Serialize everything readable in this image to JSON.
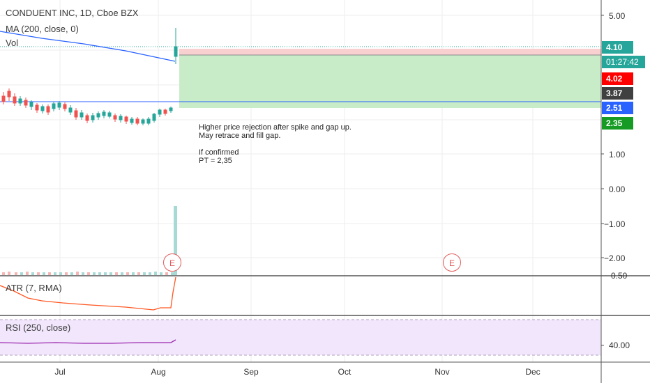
{
  "header": {
    "symbol_title": "CONDUENT INC, 1D, Cboe BZX",
    "ma_label": "MA (200, close, 0)",
    "vol_label": "Vol"
  },
  "price_axis": {
    "ticks": [
      "5.00",
      "1.00",
      "0.00",
      "−1.00",
      "−2.00"
    ],
    "partial_tick": "0.50"
  },
  "price_tags": {
    "current": "4.10",
    "countdown": "01:27:42",
    "stop": "4.02",
    "entry": "3.87",
    "ma": "2.51",
    "target": "2.35"
  },
  "annotation": {
    "lines": [
      "Higher price rejection after spike and gap up.",
      "May retrace and fill gap.",
      "",
      "If confirmed",
      "PT = 2,35"
    ]
  },
  "earnings_markers": [
    "E",
    "E"
  ],
  "atr_pane": {
    "label": "ATR (7, RMA)"
  },
  "rsi_pane": {
    "label": "RSI (250, close)",
    "tick": "40.00"
  },
  "time_axis": {
    "labels": [
      "Jul",
      "Aug",
      "Sep",
      "Oct",
      "Nov",
      "Dec"
    ]
  },
  "colors": {
    "up": "#26a69a",
    "down": "#ef5350",
    "ma_line": "#2962ff",
    "atr_line": "#ff5722",
    "rsi_line": "#9c27b0",
    "profit_zone": "#c8ebc8",
    "loss_zone": "#f8d0d0",
    "tag_blue": "#26a69a",
    "tag_red": "#ff0000",
    "tag_dark": "#404040",
    "tag_ma": "#2962ff",
    "tag_green": "#169c25"
  }
}
